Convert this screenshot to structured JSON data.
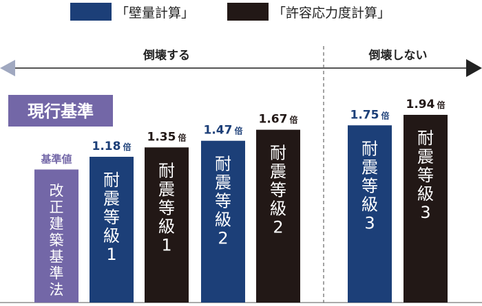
{
  "colors": {
    "wall": "#1c3f78",
    "stress": "#221816",
    "base": "#7367a7",
    "value_blue": "#1c3f78",
    "value_dark": "#221816",
    "base_label": "#7367a7",
    "standard_box": "#7367a7",
    "arrow": "#555555",
    "arrow_right_head": "#222222",
    "arrow_left_head": "#a0a8c0"
  },
  "legend": [
    {
      "key": "wall",
      "label": "「壁量計算」"
    },
    {
      "key": "stress",
      "label": "「許容応力度計算」"
    }
  ],
  "arrow": {
    "left_label": "倒壊する",
    "right_label": "倒壊しない"
  },
  "standard_label": "現行基準",
  "chart_data": {
    "type": "bar",
    "bars": [
      {
        "series": "base",
        "label": "改正建築基準法",
        "value": 1.0,
        "value_label": "基準値"
      },
      {
        "series": "wall",
        "label": "耐震等級1",
        "value": 1.18,
        "value_label": "1.18",
        "unit": "倍"
      },
      {
        "series": "stress",
        "label": "耐震等級1",
        "value": 1.35,
        "value_label": "1.35",
        "unit": "倍"
      },
      {
        "series": "wall",
        "label": "耐震等級2",
        "value": 1.47,
        "value_label": "1.47",
        "unit": "倍"
      },
      {
        "series": "stress",
        "label": "耐震等級2",
        "value": 1.67,
        "value_label": "1.67",
        "unit": "倍"
      },
      {
        "series": "wall",
        "label": "耐震等級3",
        "value": 1.75,
        "value_label": "1.75",
        "unit": "倍"
      },
      {
        "series": "stress",
        "label": "耐震等級3",
        "value": 1.94,
        "value_label": "1.94",
        "unit": "倍"
      }
    ]
  }
}
